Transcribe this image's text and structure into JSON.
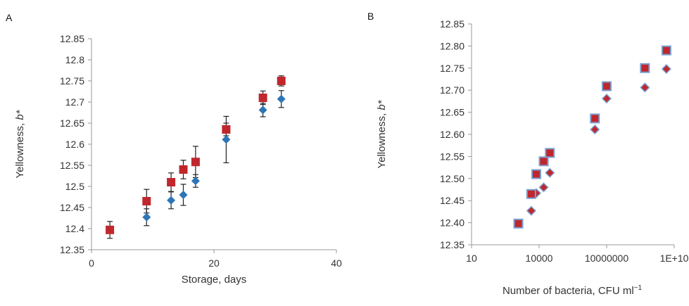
{
  "chart_data": [
    {
      "type": "scatter",
      "panel_label": "A",
      "xlabel": "Storage, days",
      "ylabel_main": "Yellowness, ",
      "ylabel_italic": "b*",
      "xlim": [
        0,
        40
      ],
      "ylim": [
        12.35,
        12.85
      ],
      "x_ticks": [
        "0",
        "20",
        "40"
      ],
      "y_ticks": [
        "12.35",
        "12.4",
        "12.45",
        "12.5",
        "12.55",
        "12.6",
        "12.65",
        "12.7",
        "12.75",
        "12.8",
        "12.85"
      ],
      "grid": false,
      "legend": "none",
      "series": [
        {
          "marker": "square",
          "color": "#c0272d",
          "points": [
            {
              "x": 3,
              "y": 12.397,
              "err": 0.02
            },
            {
              "x": 9,
              "y": 12.465,
              "err": 0.028
            },
            {
              "x": 13,
              "y": 12.51,
              "err": 0.022
            },
            {
              "x": 15,
              "y": 12.54,
              "err": 0.022
            },
            {
              "x": 17,
              "y": 12.558,
              "err": 0.037
            },
            {
              "x": 22,
              "y": 12.635,
              "err": 0.015
            },
            {
              "x": 28,
              "y": 12.71,
              "err": 0.016
            },
            {
              "x": 31,
              "y": 12.75,
              "err": 0.012
            }
          ]
        },
        {
          "marker": "diamond",
          "color": "#2e75b6",
          "points": [
            {
              "x": 9,
              "y": 12.427,
              "err": 0.02
            },
            {
              "x": 13,
              "y": 12.467,
              "err": 0.02
            },
            {
              "x": 15,
              "y": 12.48,
              "err": 0.025
            },
            {
              "x": 17,
              "y": 12.513,
              "err": 0.015
            },
            {
              "x": 22,
              "y": 12.611,
              "err": 0.055
            },
            {
              "x": 28,
              "y": 12.681,
              "err": 0.016
            },
            {
              "x": 31,
              "y": 12.707,
              "err": 0.02
            }
          ]
        }
      ]
    },
    {
      "type": "scatter",
      "panel_label": "B",
      "xlabel_main": "Number of bacteria, CFU ml",
      "xlabel_sup": "−1",
      "ylabel_main": "Yellowness, ",
      "ylabel_italic": "b*",
      "x_scale": "log",
      "xlim": [
        10,
        10000000000
      ],
      "ylim": [
        12.35,
        12.85
      ],
      "x_ticks": [
        "10",
        "10000",
        "10000000",
        "1E+10"
      ],
      "y_ticks": [
        "12.35",
        "12.40",
        "12.45",
        "12.50",
        "12.55",
        "12.60",
        "12.65",
        "12.70",
        "12.75",
        "12.80",
        "12.85"
      ],
      "grid": false,
      "legend": "none",
      "series": [
        {
          "marker": "square",
          "color": "#c0272d",
          "edge_color": "#7a9fd0",
          "points": [
            {
              "x": 1200,
              "y": 12.398
            },
            {
              "x": 4500,
              "y": 12.465
            },
            {
              "x": 7500,
              "y": 12.51
            },
            {
              "x": 16000,
              "y": 12.539
            },
            {
              "x": 30000,
              "y": 12.558
            },
            {
              "x": 3000000,
              "y": 12.636
            },
            {
              "x": 10000000,
              "y": 12.709
            },
            {
              "x": 500000000,
              "y": 12.75
            },
            {
              "x": 4500000000,
              "y": 12.79
            }
          ]
        },
        {
          "marker": "diamond",
          "color": "#c0272d",
          "edge_color": "#7a9fd0",
          "points": [
            {
              "x": 4500,
              "y": 12.427
            },
            {
              "x": 7500,
              "y": 12.467
            },
            {
              "x": 16000,
              "y": 12.48
            },
            {
              "x": 30000,
              "y": 12.513
            },
            {
              "x": 3000000,
              "y": 12.611
            },
            {
              "x": 10000000,
              "y": 12.681
            },
            {
              "x": 500000000,
              "y": 12.706
            },
            {
              "x": 4500000000,
              "y": 12.748
            }
          ]
        }
      ]
    }
  ]
}
